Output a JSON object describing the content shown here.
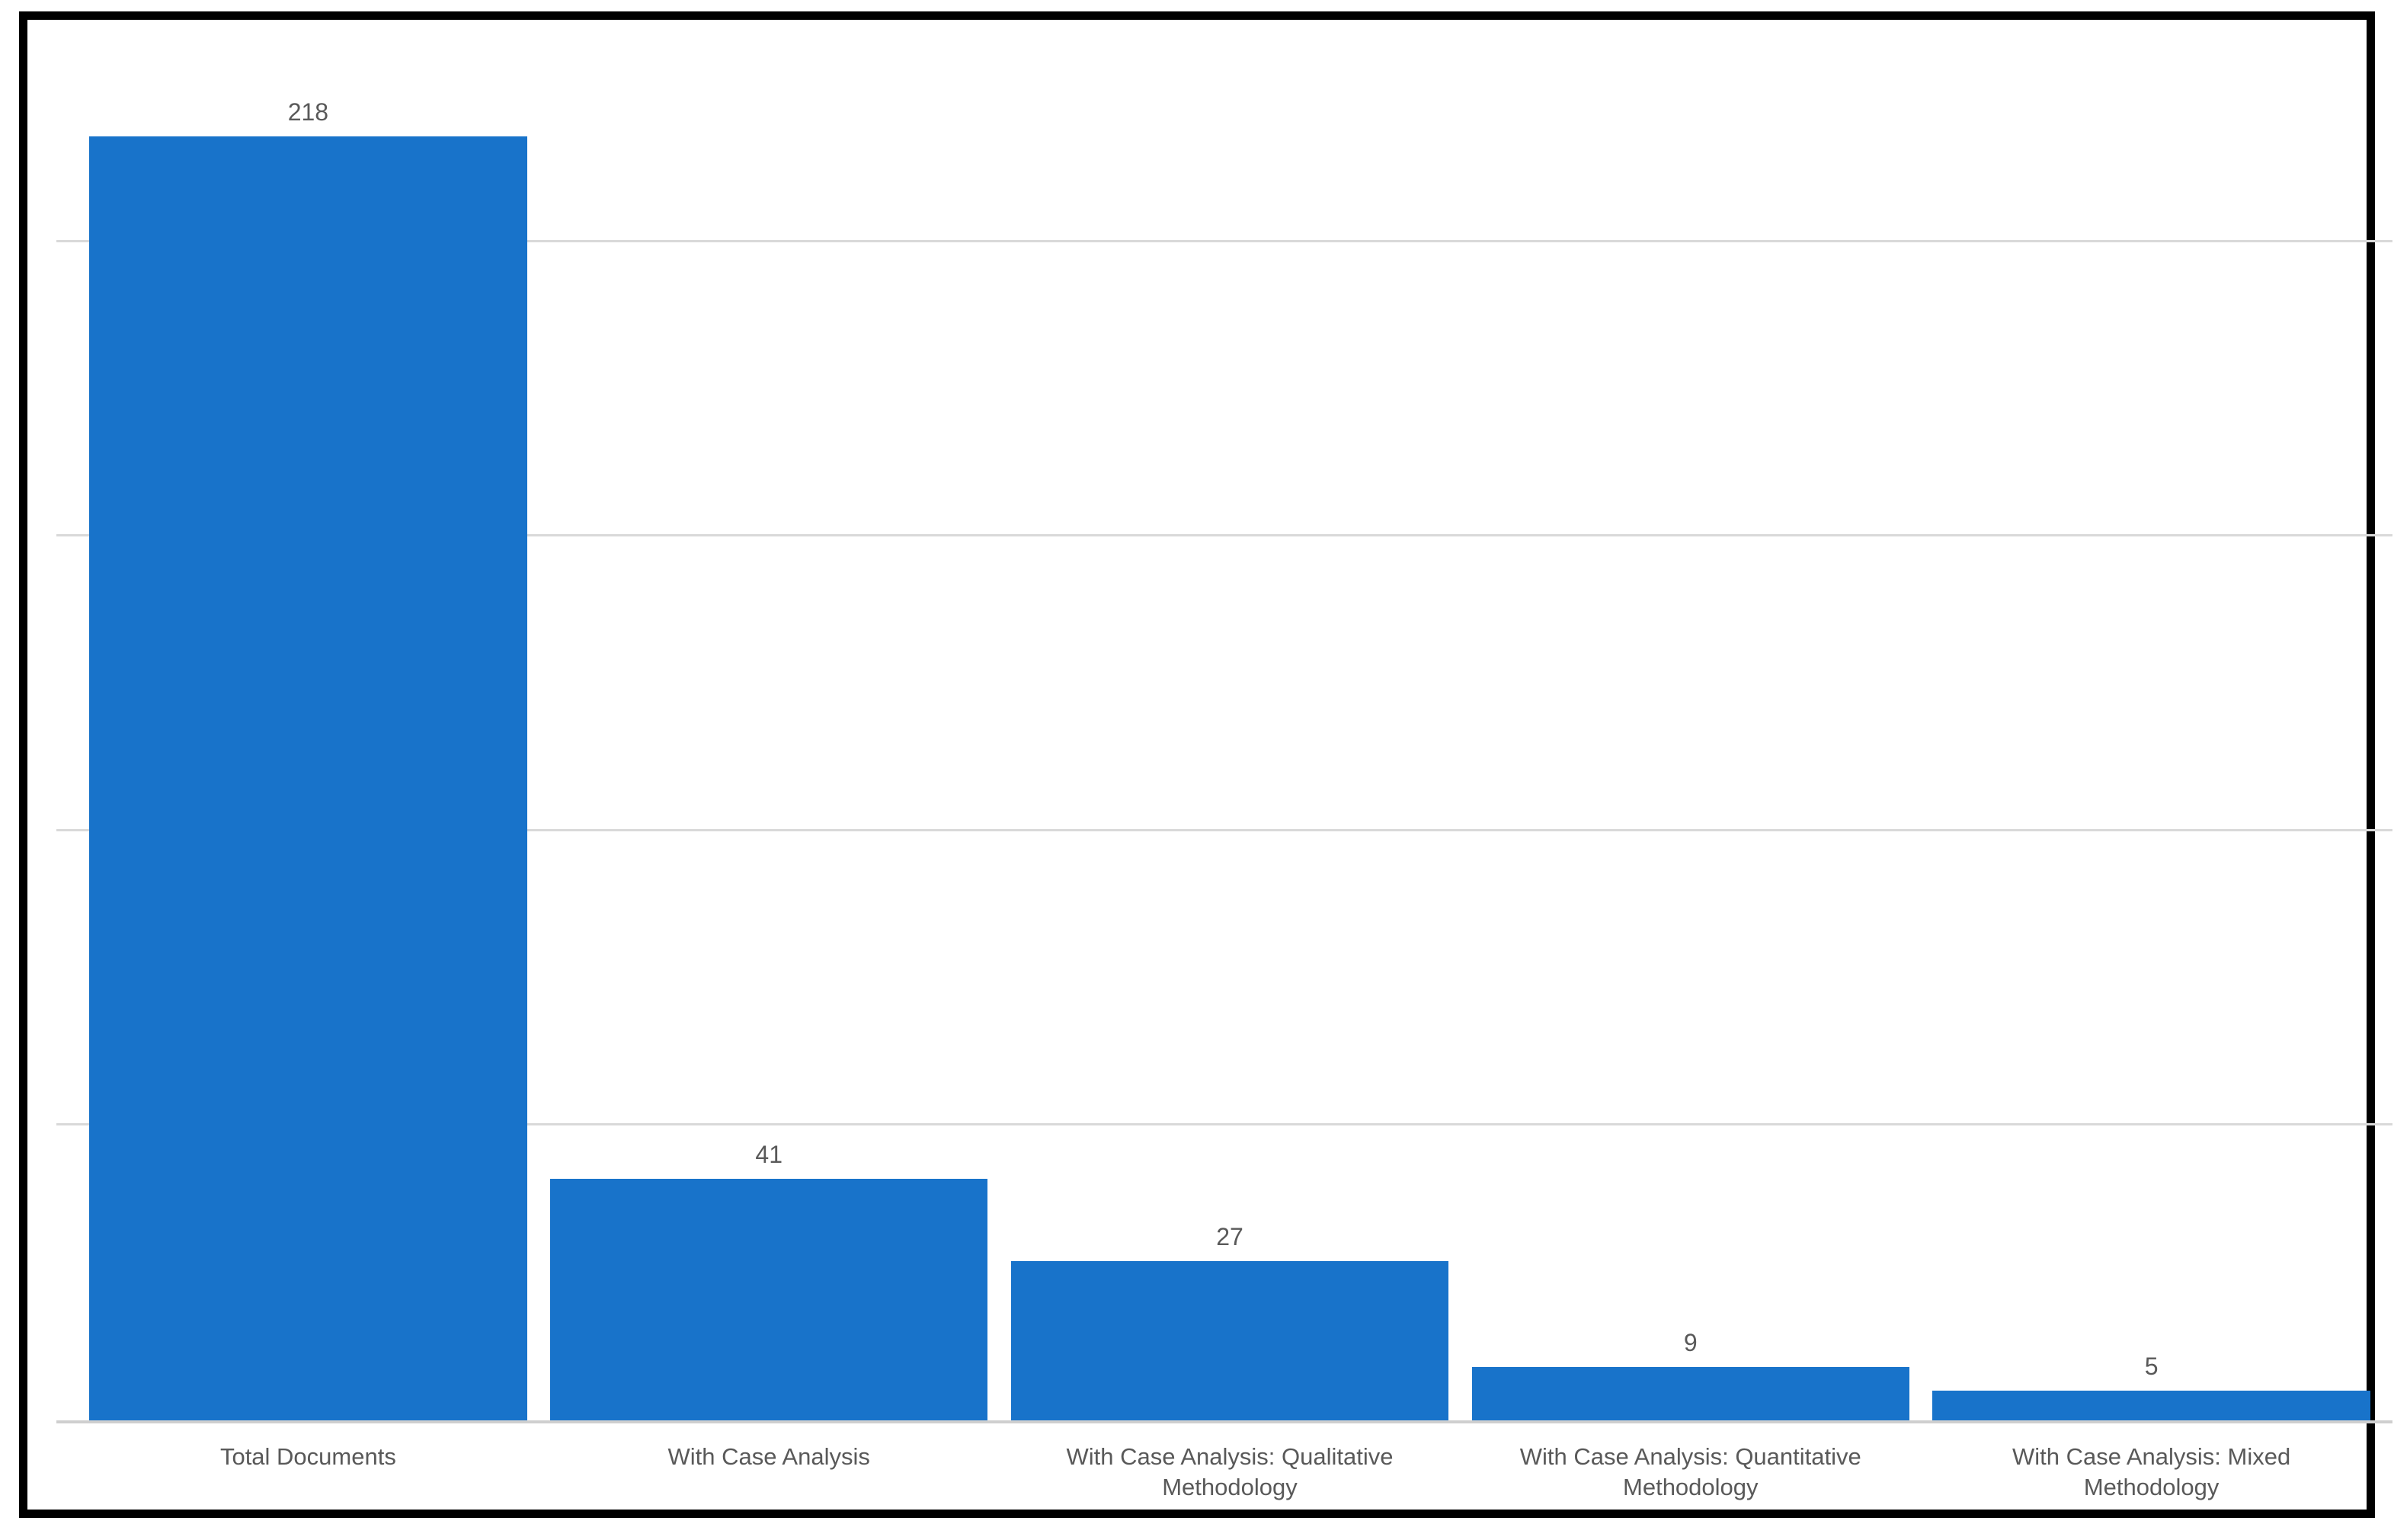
{
  "chart_data": {
    "type": "bar",
    "categories": [
      "Total Documents",
      "With Case Analysis",
      "With Case Analysis: Qualitative Methodology",
      "With Case Analysis: Quantitative Methodology",
      "With Case Analysis: Mixed Methodology"
    ],
    "values": [
      218,
      41,
      27,
      9,
      5
    ],
    "data_labels": [
      "218",
      "41",
      "27",
      "9",
      "5"
    ],
    "title": "",
    "xlabel": "",
    "ylabel": "",
    "ylim": [
      0,
      230
    ],
    "gridline_values": [
      50,
      100,
      150,
      200
    ],
    "grid": "horizontal-only",
    "legend_position": "none",
    "y_axis_tick_labels_visible": false,
    "colors": {
      "bar": "#1873CA",
      "gridline": "#D9D9D9",
      "axis_line": "#CFCFCF",
      "text": "#595959",
      "frame_border": "#000000",
      "background": "#FFFFFF"
    }
  }
}
